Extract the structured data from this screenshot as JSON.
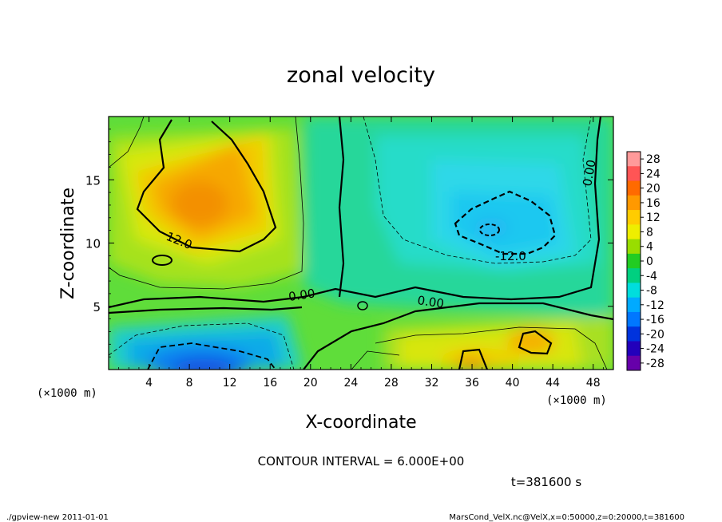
{
  "chart_data": {
    "type": "heatmap",
    "title": "zonal velocity",
    "xlabel": "X-coordinate",
    "ylabel": "Z-coordinate",
    "x_unit_left": "(×1000 m)",
    "x_unit_right": "(×1000 m)",
    "xlim": [
      0,
      50
    ],
    "ylim": [
      0,
      20
    ],
    "x_ticks": [
      "4",
      "8",
      "12",
      "16",
      "20",
      "24",
      "28",
      "32",
      "36",
      "40",
      "44",
      "48"
    ],
    "y_ticks": [
      "5",
      "10",
      "15"
    ],
    "contour_interval_text": "CONTOUR INTERVAL = 6.000E+00",
    "time_text": "t=381600 s",
    "contour_labels": [
      "12.0",
      "0.00",
      "0.00",
      "0.00",
      "-12.0"
    ],
    "colorbar": {
      "levels": [
        "28",
        "24",
        "20",
        "16",
        "12",
        "8",
        "4",
        "0",
        "-4",
        "-8",
        "-12",
        "-16",
        "-20",
        "-24",
        "-28"
      ],
      "colors": [
        "#ff9a9a",
        "#ff5555",
        "#ff6a00",
        "#ff9900",
        "#ffcc00",
        "#eeee00",
        "#99dd00",
        "#22cc22",
        "#00d080",
        "#00dddd",
        "#00aaff",
        "#0077ff",
        "#0033dd",
        "#2200bb",
        "#6600aa"
      ]
    },
    "features": [
      {
        "kind": "max",
        "x": 10,
        "z": 13,
        "value": 16
      },
      {
        "kind": "min",
        "x": 38,
        "z": 11,
        "value": -14
      },
      {
        "kind": "min",
        "x": 10,
        "z": 1,
        "value": -20
      },
      {
        "kind": "max",
        "x": 42,
        "z": 2,
        "value": 14
      }
    ]
  },
  "footer": {
    "left": "./gpview-new 2011-01-01",
    "right": "MarsCond_VelX.nc@VelX,x=0:50000,z=0:20000,t=381600"
  }
}
